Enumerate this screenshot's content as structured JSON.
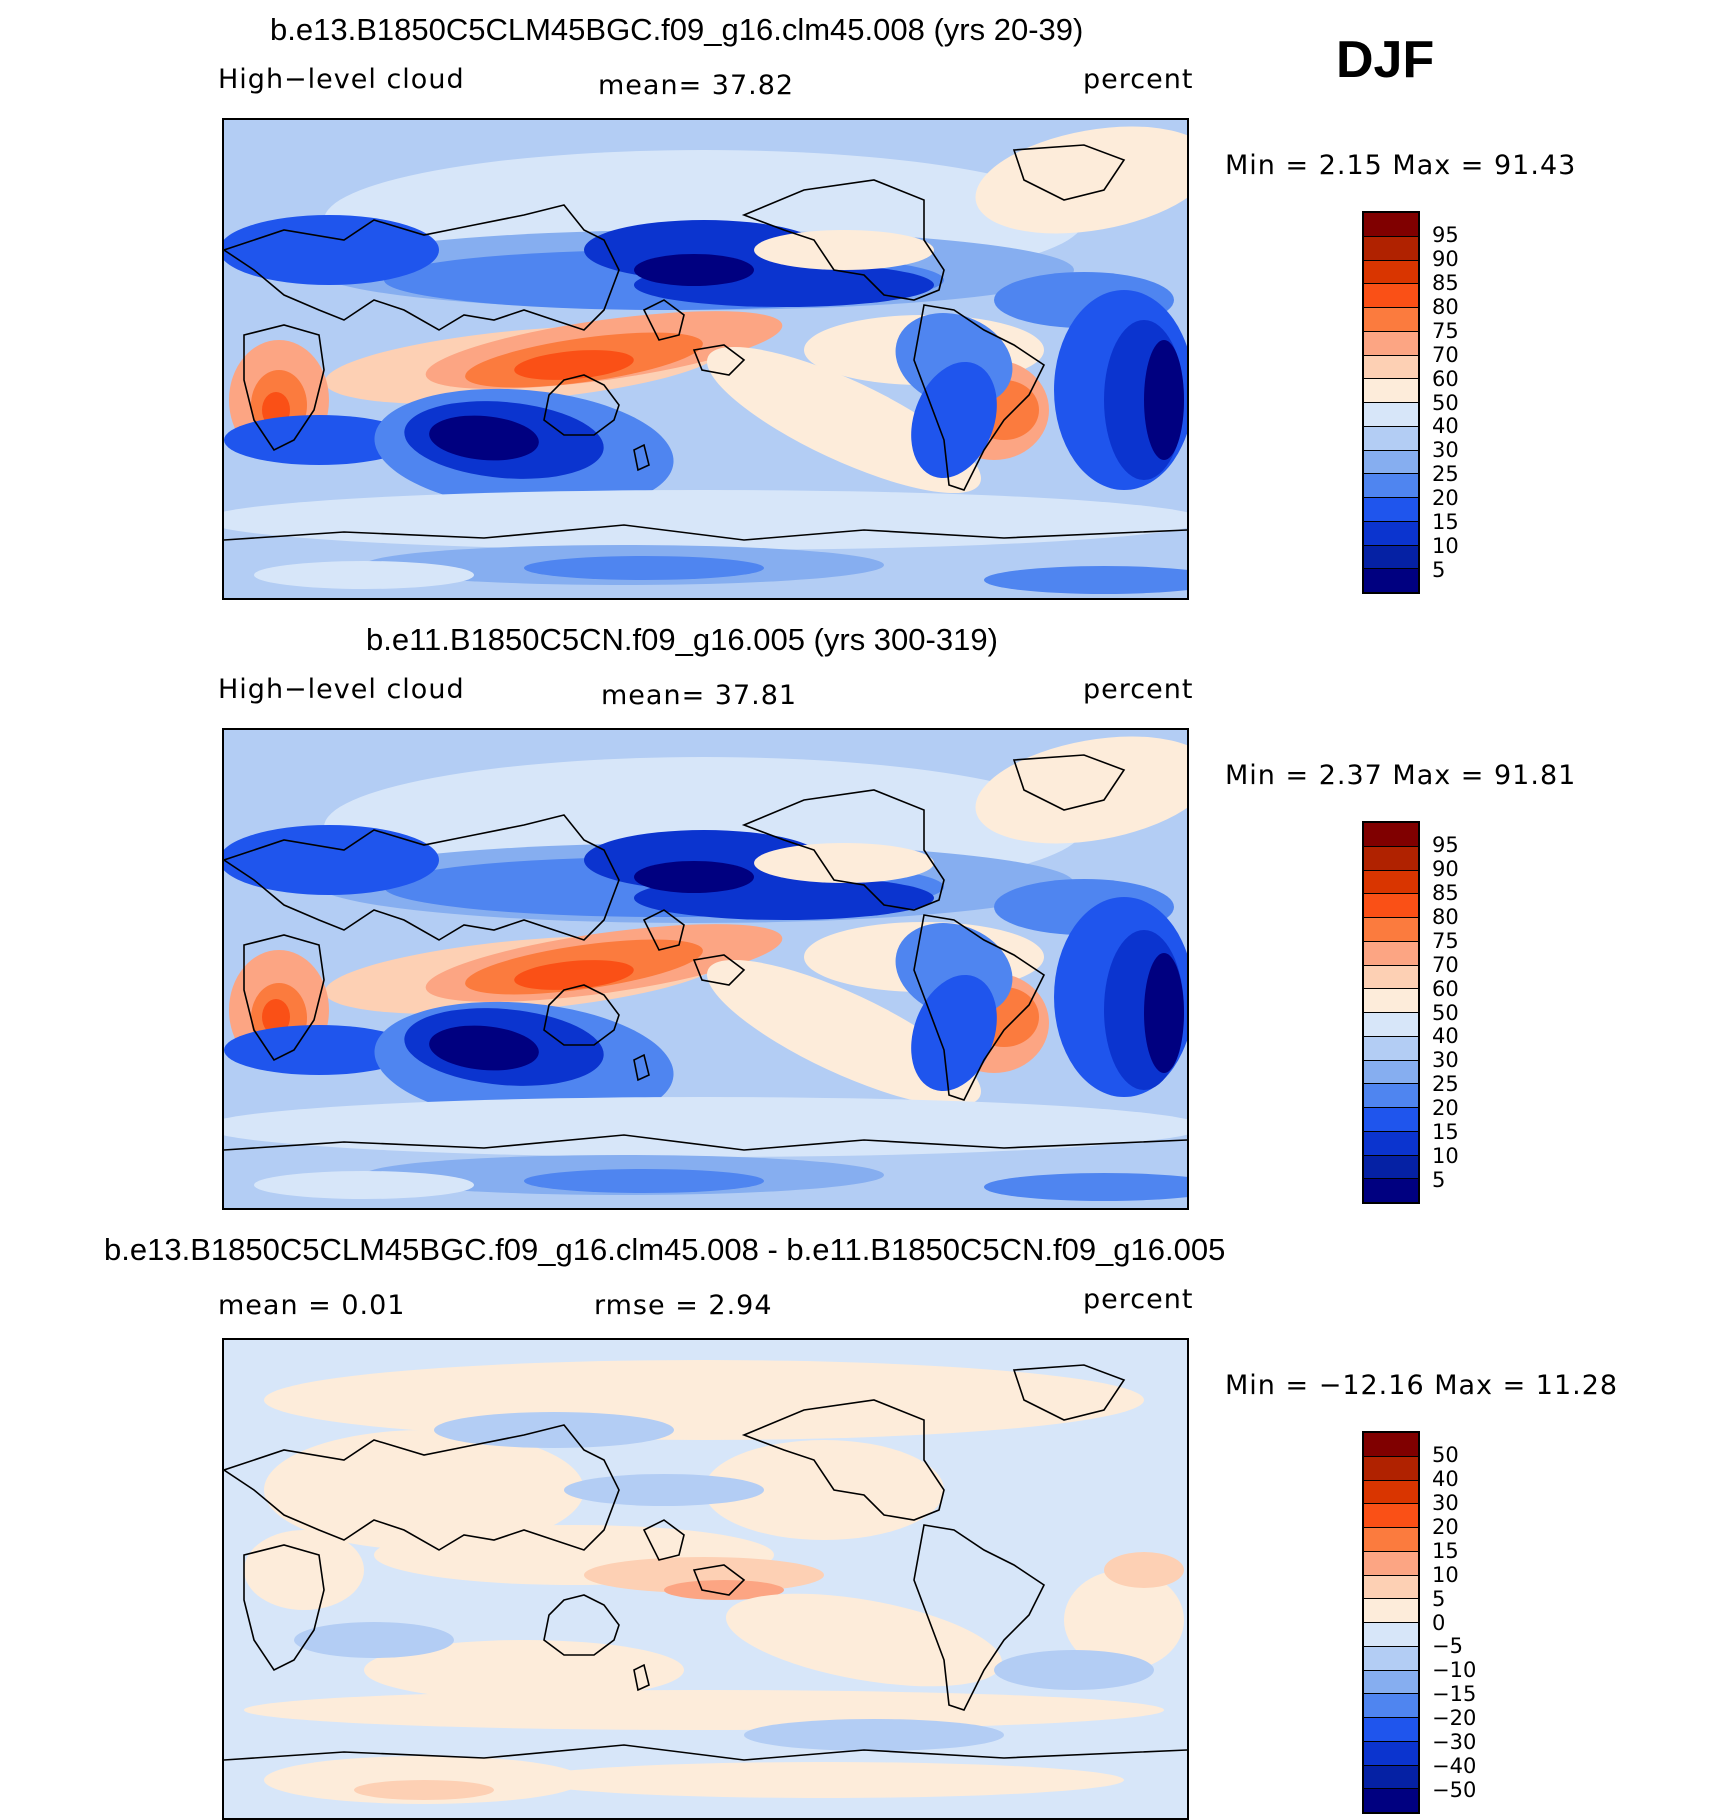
{
  "season": "DJF",
  "panels": [
    {
      "title": "b.e13.B1850C5CLM45BGC.f09_g16.clm45.008 (yrs 20-39)",
      "left_label": "High−level cloud",
      "center_label": "mean=   37.82",
      "right_label": "percent",
      "minmax": "Min =    2.15 Max =   91.43",
      "colorbar": {
        "labels": [
          "95",
          "90",
          "85",
          "80",
          "75",
          "70",
          "60",
          "50",
          "40",
          "30",
          "25",
          "20",
          "15",
          "10",
          "5"
        ],
        "colors": [
          "#800000",
          "#b02200",
          "#d93500",
          "#fa5016",
          "#fb7b3e",
          "#fca583",
          "#fdd0b4",
          "#fdecda",
          "#d7e6f9",
          "#b3cdf4",
          "#86aef0",
          "#4f85f0",
          "#1f55ed",
          "#0b34cf",
          "#0521a4",
          "#000080"
        ]
      }
    },
    {
      "title": "b.e11.B1850C5CN.f09_g16.005 (yrs 300-319)",
      "left_label": "High−level cloud",
      "center_label": "mean=   37.81",
      "right_label": "percent",
      "minmax": "Min =    2.37 Max =   91.81",
      "colorbar": {
        "labels": [
          "95",
          "90",
          "85",
          "80",
          "75",
          "70",
          "60",
          "50",
          "40",
          "30",
          "25",
          "20",
          "15",
          "10",
          "5"
        ],
        "colors": [
          "#800000",
          "#b02200",
          "#d93500",
          "#fa5016",
          "#fb7b3e",
          "#fca583",
          "#fdd0b4",
          "#fdecda",
          "#d7e6f9",
          "#b3cdf4",
          "#86aef0",
          "#4f85f0",
          "#1f55ed",
          "#0b34cf",
          "#0521a4",
          "#000080"
        ]
      }
    },
    {
      "title": "b.e13.B1850C5CLM45BGC.f09_g16.clm45.008 - b.e11.B1850C5CN.f09_g16.005",
      "left_label": "mean =    0.01",
      "center_label": "rmse =    2.94",
      "right_label": "percent",
      "minmax": "Min = −12.16 Max =   11.28",
      "colorbar": {
        "labels": [
          "50",
          "40",
          "30",
          "20",
          "15",
          "10",
          "5",
          "0",
          "−5",
          "−10",
          "−15",
          "−20",
          "−30",
          "−40",
          "−50"
        ],
        "colors": [
          "#800000",
          "#b02200",
          "#d93500",
          "#fa5016",
          "#fb7b3e",
          "#fca583",
          "#fdd0b4",
          "#fdecda",
          "#d7e6f9",
          "#b3cdf4",
          "#86aef0",
          "#4f85f0",
          "#1f55ed",
          "#0b34cf",
          "#0521a4",
          "#000080"
        ]
      }
    }
  ]
}
